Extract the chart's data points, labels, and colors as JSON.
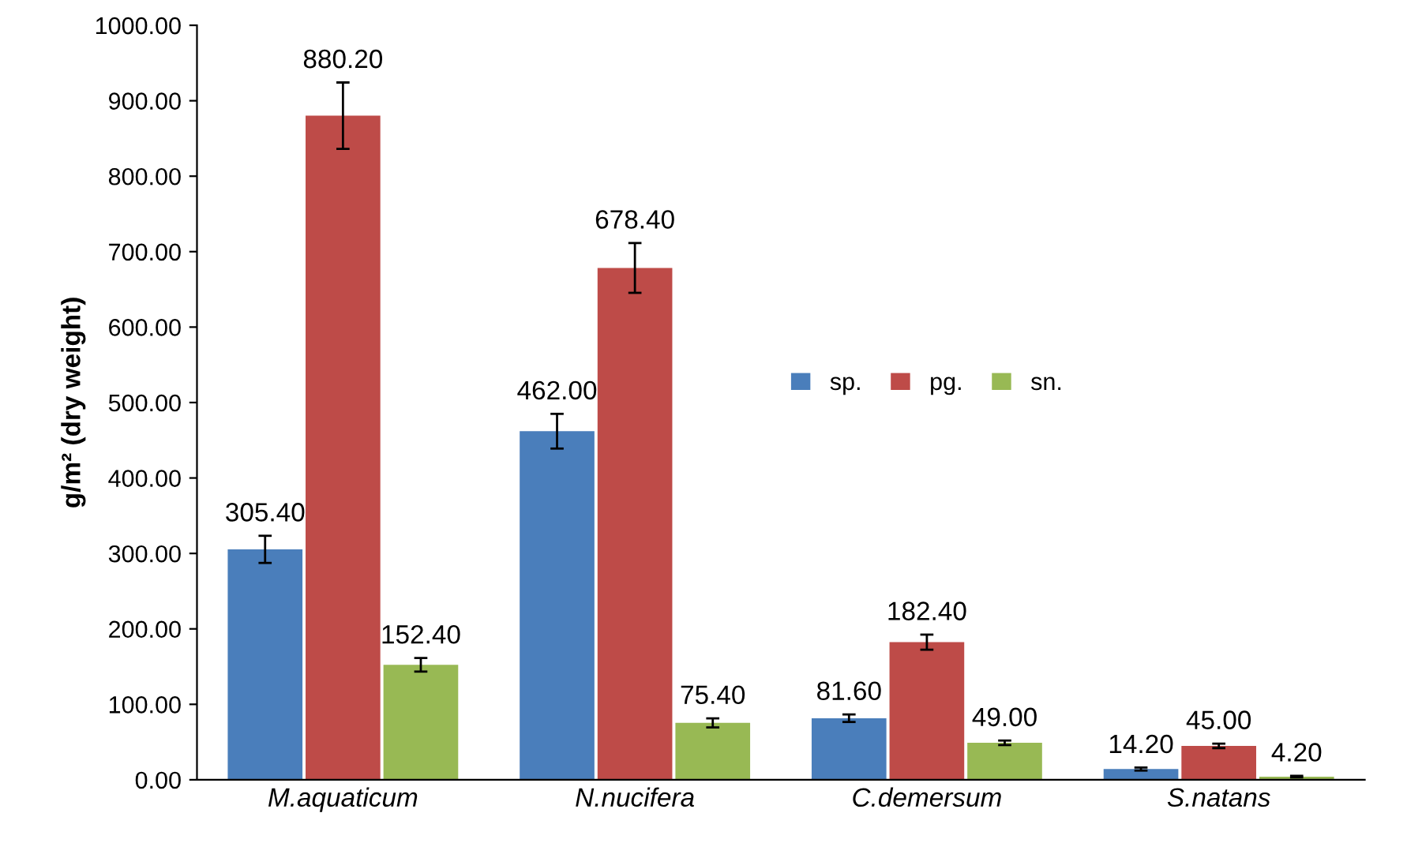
{
  "chart_data": {
    "type": "bar",
    "ylabel": "g/m² (dry weight)",
    "categories": [
      "M.aquaticum",
      "N.nucifera",
      "C.demersum",
      "S.natans"
    ],
    "series": [
      {
        "name": "sp.",
        "color": "#4a7ebb",
        "values": [
          305.4,
          462.0,
          81.6,
          14.2
        ],
        "errors": [
          18,
          23,
          5,
          2
        ],
        "value_labels": [
          "305.40",
          "462.00",
          "81.60",
          "14.20"
        ]
      },
      {
        "name": "pg.",
        "color": "#be4b48",
        "values": [
          880.2,
          678.4,
          182.4,
          45.0
        ],
        "errors": [
          44,
          33,
          10,
          3
        ],
        "value_labels": [
          "880.20",
          "678.40",
          "182.40",
          "45.00"
        ]
      },
      {
        "name": "sn.",
        "color": "#98b954",
        "values": [
          152.4,
          75.4,
          49.0,
          4.2
        ],
        "errors": [
          9,
          6,
          3,
          1
        ],
        "value_labels": [
          "152.40",
          "75.40",
          "49.00",
          "4.20"
        ]
      }
    ],
    "ylim": [
      0,
      1000
    ],
    "yticks": [
      {
        "value": 0,
        "label": "0.00"
      },
      {
        "value": 100,
        "label": "100.00"
      },
      {
        "value": 200,
        "label": "200.00"
      },
      {
        "value": 300,
        "label": "300.00"
      },
      {
        "value": 400,
        "label": "400.00"
      },
      {
        "value": 500,
        "label": "500.00"
      },
      {
        "value": 600,
        "label": "600.00"
      },
      {
        "value": 700,
        "label": "700.00"
      },
      {
        "value": 800,
        "label": "800.00"
      },
      {
        "value": 900,
        "label": "900.00"
      },
      {
        "value": 1000,
        "label": "1000.00"
      }
    ],
    "grid": false,
    "legend": "center"
  }
}
